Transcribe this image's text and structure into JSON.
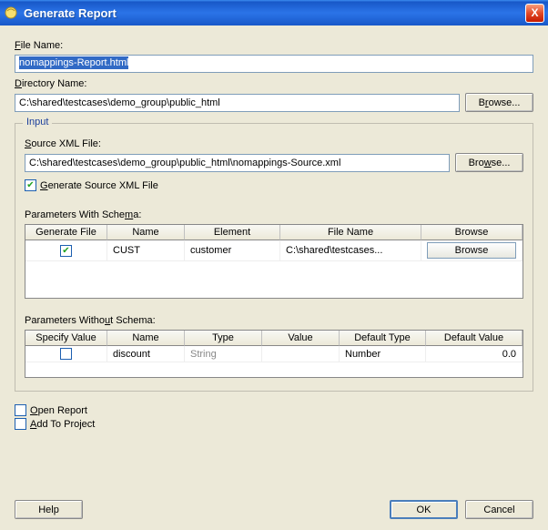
{
  "window": {
    "title": "Generate Report",
    "close_glyph": "X"
  },
  "fields": {
    "file_name_label": "File Name:",
    "file_name_value": "nomappings-Report.html",
    "dir_label": "Directory Name:",
    "dir_value": "C:\\shared\\testcases\\demo_group\\public_html",
    "browse_label": "Browse..."
  },
  "input_group": {
    "legend": "Input",
    "source_label": "Source XML File:",
    "source_value": "C:\\shared\\testcases\\demo_group\\public_html\\nomappings-Source.xml",
    "browse_label": "Browse...",
    "gen_source_label": "Generate Source XML File",
    "gen_source_checked": true
  },
  "params_schema": {
    "label": "Parameters With Schema:",
    "columns": [
      "Generate File",
      "Name",
      "Element",
      "File Name",
      "Browse"
    ],
    "row": {
      "checked": true,
      "name": "CUST",
      "element": "customer",
      "file": "C:\\shared\\testcases...",
      "browse": "Browse"
    }
  },
  "params_noschema": {
    "label": "Parameters Without Schema:",
    "columns": [
      "Specify Value",
      "Name",
      "Type",
      "Value",
      "Default Type",
      "Default Value"
    ],
    "row": {
      "checked": false,
      "name": "discount",
      "type": "String",
      "value": "",
      "default_type": "Number",
      "default_value": "0.0"
    }
  },
  "options": {
    "open_report_label": "Open Report",
    "open_report_checked": false,
    "add_project_label": "Add To Project",
    "add_project_checked": false
  },
  "buttons": {
    "help": "Help",
    "ok": "OK",
    "cancel": "Cancel"
  }
}
